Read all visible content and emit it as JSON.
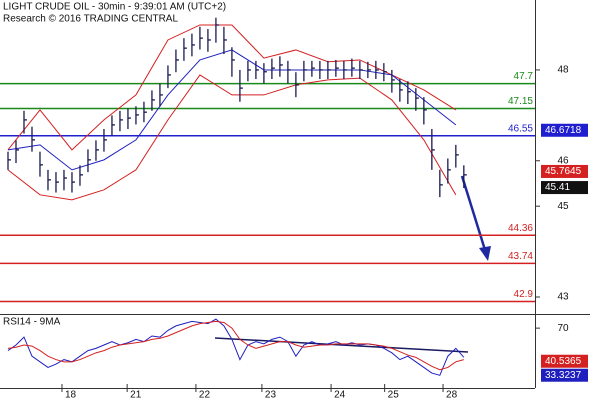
{
  "chart_data": [
    {
      "type": "ohlc",
      "title": "LIGHT CRUDE OIL - 30min - 9:39:01 AM (UTC+2)",
      "subtitle": "Research © 2016 TRADING CENTRAL",
      "color": "#1a1a50",
      "x": [
        0,
        1,
        2,
        3,
        4,
        5,
        6,
        7,
        8,
        9,
        10,
        11,
        12,
        13,
        14,
        15,
        16,
        17,
        18,
        19,
        20,
        21,
        22,
        23,
        24,
        25,
        26,
        27,
        28,
        29,
        30,
        31,
        32,
        33,
        34,
        35,
        36,
        37,
        38,
        39,
        40,
        41,
        42,
        43,
        44,
        45,
        46,
        47,
        48,
        49,
        50,
        51,
        52,
        53,
        54,
        55,
        56,
        57
      ],
      "high": [
        46.2,
        46.45,
        47.1,
        46.75,
        46.2,
        45.8,
        45.75,
        45.8,
        45.75,
        45.9,
        46.25,
        46.45,
        46.7,
        47.0,
        47.1,
        47.15,
        47.2,
        47.3,
        47.55,
        47.7,
        48.1,
        48.45,
        48.7,
        48.8,
        48.95,
        48.9,
        49.15,
        48.95,
        48.5,
        48.0,
        48.2,
        48.2,
        48.15,
        48.25,
        48.3,
        48.2,
        47.95,
        48.2,
        48.2,
        48.2,
        48.2,
        48.22,
        48.2,
        48.25,
        48.2,
        48.18,
        48.2,
        48.15,
        48.0,
        47.8,
        47.75,
        47.6,
        47.4,
        46.7,
        45.8,
        46.05,
        46.35,
        45.9
      ],
      "low": [
        45.8,
        45.95,
        46.6,
        46.2,
        45.65,
        45.35,
        45.3,
        45.35,
        45.3,
        45.45,
        45.75,
        46.0,
        46.2,
        46.55,
        46.65,
        46.7,
        46.8,
        46.85,
        47.1,
        47.2,
        47.6,
        47.95,
        48.2,
        48.3,
        48.45,
        48.4,
        48.6,
        48.35,
        47.85,
        47.3,
        47.75,
        47.8,
        47.7,
        47.8,
        47.85,
        47.7,
        47.4,
        47.75,
        47.85,
        47.8,
        47.8,
        47.85,
        47.8,
        47.85,
        47.8,
        47.82,
        47.8,
        47.75,
        47.5,
        47.3,
        47.25,
        47.1,
        46.8,
        45.8,
        45.2,
        45.5,
        45.85,
        45.4
      ],
      "close": [
        46.02,
        46.24,
        46.9,
        46.46,
        45.91,
        45.58,
        45.53,
        45.62,
        45.53,
        45.69,
        46.02,
        46.24,
        46.46,
        46.79,
        46.9,
        46.94,
        47.01,
        47.07,
        47.34,
        47.45,
        47.89,
        48.22,
        48.48,
        48.55,
        48.7,
        48.66,
        48.99,
        48.66,
        48.22,
        47.6,
        48.0,
        48.0,
        47.96,
        48.04,
        48.11,
        48.0,
        47.67,
        48.0,
        48.04,
        48.0,
        48.0,
        48.04,
        48.0,
        48.04,
        48.0,
        48.0,
        48.0,
        47.96,
        47.78,
        47.56,
        47.52,
        47.38,
        47.12,
        46.24,
        45.47,
        45.8,
        46.13,
        45.69
      ],
      "series": [
        {
          "color": "#d42020",
          "x": [
            0,
            4,
            8,
            12,
            16,
            20,
            24,
            28,
            32,
            36,
            40,
            44,
            48,
            52,
            56
          ],
          "values": [
            46.24,
            47.12,
            46.24,
            46.9,
            47.45,
            48.66,
            48.99,
            48.99,
            48.26,
            48.44,
            48.18,
            48.22,
            47.89,
            47.56,
            47.12
          ]
        },
        {
          "color": "#d42020",
          "x": [
            0,
            4,
            8,
            12,
            16,
            20,
            24,
            28,
            32,
            36,
            40,
            44,
            48,
            52,
            56
          ],
          "values": [
            45.8,
            45.25,
            45.14,
            45.36,
            45.8,
            46.9,
            47.89,
            47.45,
            47.45,
            47.67,
            47.78,
            47.82,
            47.34,
            46.46,
            45.25
          ]
        },
        {
          "color": "#2020c0",
          "x": [
            0,
            4,
            8,
            12,
            16,
            20,
            24,
            28,
            32,
            36,
            40,
            44,
            48,
            52,
            56
          ],
          "values": [
            46.24,
            46.35,
            45.8,
            46.02,
            46.46,
            47.45,
            48.22,
            48.44,
            48.0,
            48.0,
            48.0,
            48.0,
            47.89,
            47.34,
            46.79
          ]
        }
      ],
      "levels": [
        {
          "value": 47.7,
          "color": "#1a8a1a"
        },
        {
          "value": 47.15,
          "color": "#1a8a1a"
        },
        {
          "value": 46.55,
          "color": "#1f1fd0"
        },
        {
          "value": 44.36,
          "color": "#d42020"
        },
        {
          "value": 43.74,
          "color": "#d42020"
        },
        {
          "value": 42.9,
          "color": "#d42020"
        }
      ],
      "markers": [
        {
          "value": 46.6718,
          "color": "#1f1fd0"
        },
        {
          "value": 45.7645,
          "color": "#d42020"
        },
        {
          "value": 45.41,
          "color": "#111111"
        }
      ],
      "xlim": [
        -1,
        65.9
      ],
      "xticks": [
        {
          "value": 6.75,
          "label": "18"
        },
        {
          "value": 14.9,
          "label": "21"
        },
        {
          "value": 23.5,
          "label": "22"
        },
        {
          "value": 31.75,
          "label": "23"
        },
        {
          "value": 40.4,
          "label": "24"
        },
        {
          "value": 47.1,
          "label": "25"
        },
        {
          "value": 54.4,
          "label": "28"
        }
      ],
      "ylim": [
        42.67,
        49.54
      ],
      "yticks": [
        43,
        45,
        46,
        48
      ]
    },
    {
      "type": "line",
      "title": "RSI14 - 9MA",
      "series": [
        {
          "color": "#1f1fc0",
          "values": [
            50,
            55,
            62,
            45,
            40,
            35,
            38,
            42,
            40,
            45,
            50,
            52,
            55,
            58,
            55,
            57,
            60,
            58,
            63,
            62,
            68,
            72,
            74,
            76,
            75,
            74,
            78,
            72,
            60,
            42,
            55,
            58,
            56,
            60,
            62,
            58,
            45,
            55,
            58,
            55,
            56,
            58,
            55,
            57,
            55,
            56,
            55,
            52,
            48,
            42,
            45,
            40,
            35,
            30,
            28,
            45,
            52,
            44
          ]
        },
        {
          "color": "#d42020",
          "values": [
            52,
            53,
            55,
            54,
            50,
            45,
            42,
            40,
            40,
            42,
            45,
            48,
            50,
            53,
            55,
            56,
            57,
            58,
            60,
            61,
            63,
            66,
            69,
            72,
            74,
            75,
            76,
            75,
            70,
            60,
            55,
            52,
            54,
            56,
            58,
            58,
            55,
            53,
            54,
            55,
            55,
            56,
            56,
            56,
            56,
            56,
            55,
            54,
            52,
            49,
            46,
            44,
            40,
            36,
            33,
            35,
            40,
            42
          ]
        }
      ],
      "markers": [
        {
          "value": 40.5365,
          "color": "#d42020"
        },
        {
          "value": 33.3237,
          "color": "#1f1fc0"
        }
      ],
      "ylim": [
        16.7,
        80.8
      ],
      "yticks": [
        70
      ]
    }
  ]
}
